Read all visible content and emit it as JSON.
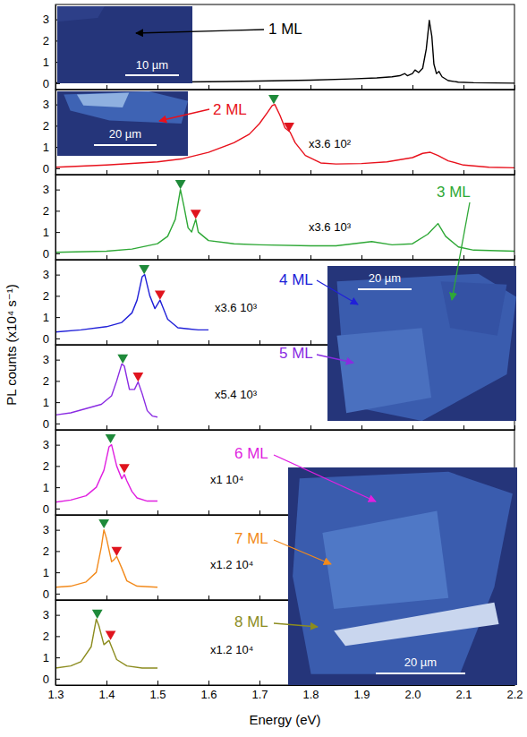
{
  "chart_data": [
    {
      "type": "line",
      "label": "1 ML",
      "x": [
        1.3,
        1.4,
        1.5,
        1.6,
        1.7,
        1.8,
        1.88,
        1.93,
        1.96,
        1.975,
        1.985,
        1.99,
        2.0,
        2.005,
        2.012,
        2.02,
        2.027,
        2.033,
        2.038,
        2.042,
        2.047,
        2.052,
        2.058,
        2.07,
        2.09,
        2.12,
        2.2
      ],
      "series": [
        {
          "color": "#000000",
          "values": [
            0.02,
            0.03,
            0.05,
            0.07,
            0.1,
            0.14,
            0.2,
            0.25,
            0.3,
            0.35,
            0.45,
            0.35,
            0.45,
            0.62,
            0.5,
            0.7,
            1.6,
            2.95,
            2.2,
            0.9,
            0.45,
            0.55,
            0.3,
            0.12,
            0.05,
            0.02,
            0.0
          ]
        }
      ],
      "xlim": [
        1.3,
        2.2
      ],
      "xticks": [
        1.3,
        1.4,
        1.5,
        1.6,
        1.7,
        1.8,
        1.9,
        {
          "value": 2,
          "label": "2.0"
        },
        2.1,
        2.2
      ],
      "ylim": [
        -0.3,
        3.7
      ],
      "yticks": [
        0,
        1,
        2,
        3
      ],
      "tick_labels": "y",
      "ylabel": "PL counts (x10⁴ s⁻¹)",
      "inset": {
        "scale_label": "10 µm"
      }
    },
    {
      "type": "line",
      "label": "2 ML",
      "scale_factor": "x3.6 10²",
      "x": [
        1.3,
        1.4,
        1.5,
        1.55,
        1.6,
        1.65,
        1.68,
        1.7,
        1.715,
        1.725,
        1.73,
        1.74,
        1.75,
        1.76,
        1.77,
        1.79,
        1.82,
        1.85,
        1.9,
        1.95,
        2.0,
        2.02,
        2.035,
        2.05,
        2.07,
        2.1,
        2.15,
        2.2
      ],
      "series": [
        {
          "color": "#e8111c",
          "values": [
            0.05,
            0.15,
            0.3,
            0.45,
            0.75,
            1.2,
            1.6,
            2.1,
            2.6,
            2.95,
            3.0,
            2.5,
            1.9,
            1.7,
            1.2,
            0.6,
            0.25,
            0.2,
            0.22,
            0.3,
            0.5,
            0.7,
            0.75,
            0.6,
            0.35,
            0.15,
            0.05,
            0.02
          ]
        }
      ],
      "peaks": [
        {
          "x": 1.728,
          "y": 3.3,
          "color": "#1f8a3a"
        },
        {
          "x": 1.758,
          "y": 2.0,
          "color": "#e0141e"
        }
      ],
      "xlim": [
        1.3,
        2.2
      ],
      "xticks": [
        1.3,
        1.4,
        1.5,
        1.6,
        1.7,
        1.8,
        1.9,
        {
          "value": 2,
          "label": "2.0"
        },
        2.1,
        2.2
      ],
      "ylim": [
        -0.3,
        3.7
      ],
      "yticks": [
        0,
        1,
        2,
        3
      ],
      "tick_labels": "y",
      "inset": {
        "scale_label": "20 µm"
      }
    },
    {
      "type": "line",
      "label": "3 ML",
      "scale_factor": "x3.6 10³",
      "x": [
        1.3,
        1.4,
        1.45,
        1.5,
        1.52,
        1.535,
        1.545,
        1.552,
        1.56,
        1.567,
        1.575,
        1.58,
        1.6,
        1.65,
        1.7,
        1.8,
        1.85,
        1.92,
        1.96,
        2.0,
        2.03,
        2.05,
        2.065,
        2.09,
        2.12,
        2.2
      ],
      "series": [
        {
          "color": "#2ea836",
          "values": [
            0.05,
            0.1,
            0.2,
            0.45,
            0.8,
            1.6,
            3.0,
            2.2,
            1.2,
            1.0,
            1.6,
            1.0,
            0.6,
            0.45,
            0.4,
            0.35,
            0.35,
            0.55,
            0.4,
            0.45,
            0.9,
            1.4,
            0.8,
            0.3,
            0.15,
            0.1
          ]
        }
      ],
      "peaks": [
        {
          "x": 1.545,
          "y": 3.3,
          "color": "#1f8a3a"
        },
        {
          "x": 1.575,
          "y": 1.9,
          "color": "#e0141e"
        }
      ],
      "xlim": [
        1.3,
        2.2
      ],
      "xticks": [
        1.3,
        1.4,
        1.5,
        1.6,
        1.7,
        1.8,
        1.9,
        {
          "value": 2,
          "label": "2.0"
        },
        2.1,
        2.2
      ],
      "ylim": [
        -0.3,
        3.7
      ],
      "yticks": [
        0,
        1,
        2,
        3
      ],
      "tick_labels": "y"
    },
    {
      "type": "line",
      "label": "4 ML",
      "scale_factor": "x3.6 10³",
      "x": [
        1.3,
        1.35,
        1.4,
        1.43,
        1.45,
        1.46,
        1.47,
        1.475,
        1.485,
        1.495,
        1.505,
        1.51,
        1.52,
        1.54,
        1.56,
        1.58,
        1.6
      ],
      "series": [
        {
          "color": "#2020d8",
          "values": [
            0.3,
            0.4,
            0.55,
            0.75,
            1.2,
            1.8,
            2.9,
            3.0,
            2.0,
            1.4,
            1.8,
            1.5,
            0.9,
            0.5,
            0.45,
            0.4,
            0.4
          ]
        }
      ],
      "peaks": [
        {
          "x": 1.474,
          "y": 3.3,
          "color": "#1f8a3a"
        },
        {
          "x": 1.505,
          "y": 2.1,
          "color": "#e0141e"
        }
      ],
      "xlim": [
        1.3,
        2.2
      ],
      "xticks": [
        1.3,
        1.4,
        1.5,
        1.6,
        1.7,
        1.8,
        1.9,
        {
          "value": 2,
          "label": "2.0"
        },
        2.1,
        2.2
      ],
      "ylim": [
        -0.3,
        3.7
      ],
      "yticks": [
        0,
        1,
        2,
        3
      ],
      "tick_labels": "y",
      "inset": {
        "scale_label": "20 µm"
      }
    },
    {
      "type": "line",
      "label": "5 ML",
      "scale_factor": "x5.4 10³",
      "x": [
        1.3,
        1.33,
        1.36,
        1.39,
        1.41,
        1.42,
        1.43,
        1.435,
        1.445,
        1.455,
        1.462,
        1.47,
        1.48,
        1.49,
        1.5
      ],
      "series": [
        {
          "color": "#8a2be2",
          "values": [
            0.4,
            0.5,
            0.7,
            0.9,
            1.3,
            2.0,
            2.8,
            2.7,
            1.6,
            1.6,
            1.95,
            1.4,
            0.6,
            0.35,
            0.3
          ]
        }
      ],
      "peaks": [
        {
          "x": 1.432,
          "y": 3.1,
          "color": "#1f8a3a"
        },
        {
          "x": 1.462,
          "y": 2.25,
          "color": "#e0141e"
        }
      ],
      "xlim": [
        1.3,
        2.2
      ],
      "xticks": [
        1.3,
        1.4,
        1.5,
        1.6,
        1.7,
        1.8,
        1.9,
        {
          "value": 2,
          "label": "2.0"
        },
        2.1,
        2.2
      ],
      "ylim": [
        -0.3,
        3.7
      ],
      "yticks": [
        0,
        1,
        2,
        3
      ],
      "tick_labels": "y"
    },
    {
      "type": "line",
      "label": "6 ML",
      "scale_factor": "x1 10⁴",
      "x": [
        1.3,
        1.33,
        1.36,
        1.38,
        1.395,
        1.405,
        1.41,
        1.42,
        1.43,
        1.435,
        1.44,
        1.45,
        1.46,
        1.48,
        1.5
      ],
      "series": [
        {
          "color": "#e01fe0",
          "values": [
            0.3,
            0.4,
            0.6,
            1.0,
            1.8,
            2.9,
            3.0,
            2.0,
            1.4,
            1.6,
            1.3,
            0.8,
            0.5,
            0.35,
            0.35
          ]
        }
      ],
      "peaks": [
        {
          "x": 1.408,
          "y": 3.35,
          "color": "#1f8a3a"
        },
        {
          "x": 1.435,
          "y": 1.95,
          "color": "#e0141e"
        }
      ],
      "xlim": [
        1.3,
        2.2
      ],
      "xticks": [
        1.3,
        1.4,
        1.5,
        1.6,
        1.7,
        1.8,
        1.9,
        {
          "value": 2,
          "label": "2.0"
        },
        2.1,
        2.2
      ],
      "ylim": [
        -0.3,
        3.7
      ],
      "yticks": [
        0,
        1,
        2,
        3
      ],
      "tick_labels": "y",
      "inset": {
        "scale_label": "20 µm"
      }
    },
    {
      "type": "line",
      "label": "7 ML",
      "scale_factor": "x1.2 10⁴",
      "x": [
        1.3,
        1.33,
        1.36,
        1.38,
        1.39,
        1.395,
        1.4,
        1.41,
        1.415,
        1.42,
        1.43,
        1.44,
        1.46,
        1.5
      ],
      "series": [
        {
          "color": "#f28a1c",
          "values": [
            0.3,
            0.35,
            0.55,
            1.0,
            2.2,
            3.0,
            2.6,
            1.5,
            1.6,
            1.75,
            1.2,
            0.6,
            0.35,
            0.3
          ]
        }
      ],
      "peaks": [
        {
          "x": 1.395,
          "y": 3.35,
          "color": "#1f8a3a"
        },
        {
          "x": 1.42,
          "y": 2.05,
          "color": "#e0141e"
        }
      ],
      "xlim": [
        1.3,
        2.2
      ],
      "xticks": [
        1.3,
        1.4,
        1.5,
        1.6,
        1.7,
        1.8,
        1.9,
        {
          "value": 2,
          "label": "2.0"
        },
        2.1,
        2.2
      ],
      "ylim": [
        -0.3,
        3.7
      ],
      "yticks": [
        0,
        1,
        2,
        3
      ],
      "tick_labels": "y"
    },
    {
      "type": "line",
      "label": "8 ML",
      "scale_factor": "x1.2 10⁴",
      "x": [
        1.3,
        1.33,
        1.35,
        1.37,
        1.38,
        1.385,
        1.395,
        1.405,
        1.41,
        1.42,
        1.44,
        1.47,
        1.5
      ],
      "series": [
        {
          "color": "#8c8c1f",
          "values": [
            0.5,
            0.6,
            0.8,
            1.5,
            2.8,
            2.5,
            1.6,
            1.8,
            1.5,
            0.9,
            0.6,
            0.5,
            0.5
          ]
        }
      ],
      "peaks": [
        {
          "x": 1.382,
          "y": 3.1,
          "color": "#1f8a3a"
        },
        {
          "x": 1.408,
          "y": 2.1,
          "color": "#e0141e"
        }
      ],
      "xlim": [
        1.3,
        2.2
      ],
      "xticks": [
        1.3,
        1.4,
        1.5,
        1.6,
        1.7,
        1.8,
        1.9,
        {
          "value": 2,
          "label": "2.0"
        },
        2.1,
        2.2
      ],
      "ylim": [
        -0.3,
        3.7
      ],
      "yticks": [
        0,
        1,
        2,
        3
      ],
      "tick_labels": true,
      "xlabel": "Energy (eV)"
    }
  ]
}
